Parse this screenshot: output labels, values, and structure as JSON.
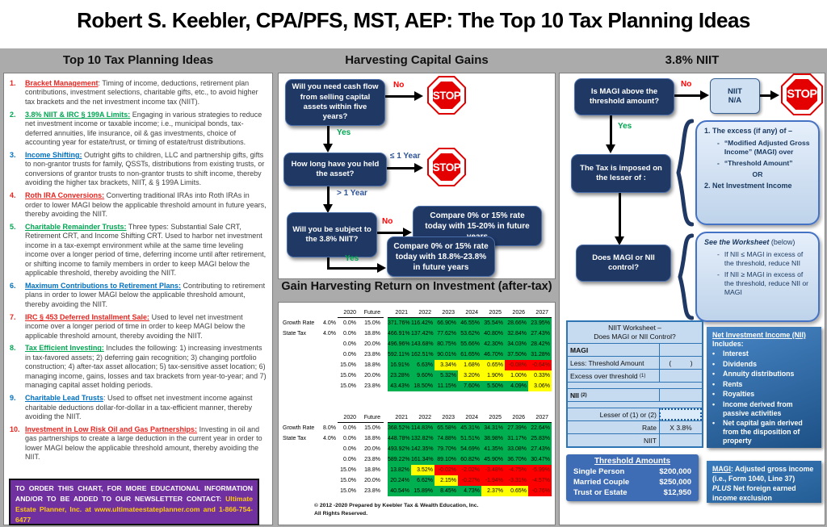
{
  "title": "Robert S. Keebler, CPA/PFS, MST, AEP: The Top 10 Tax Planning Ideas",
  "headers": {
    "left": "Top 10 Tax Planning Ideas",
    "middle": "Harvesting Capital Gains",
    "right": "3.8% NIIT"
  },
  "labels": {
    "no": "No",
    "yes": "Yes",
    "stop": "STOP"
  },
  "ideas": [
    {
      "num": "1.",
      "color": "red",
      "heading": "Bracket Management",
      "body": ": Timing of income, deductions, retirement plan contributions, investment selections, charitable gifts, etc., to avoid higher tax brackets and the net investment income tax (NIIT)."
    },
    {
      "num": "2.",
      "color": "green",
      "heading": "3.8% NIIT & IRC § 199A Limits:",
      "body": " Engaging in various strategies to reduce net investment income or taxable income; i.e., municipal bonds, tax-deferred annuities, life insurance, oil & gas investments, choice of accounting year for estate/trust, or timing of estate/trust distributions."
    },
    {
      "num": "3.",
      "color": "blue",
      "heading": "Income Shifting:",
      "body": " Outright gifts to children, LLC and partnership gifts, gifts to non-grantor trusts for family, QSSTs, distributions from existing trusts, or conversions of grantor trusts to non-grantor trusts to shift income, thereby avoiding the higher tax brackets, NIIT, & § 199A Limits."
    },
    {
      "num": "4.",
      "color": "red",
      "heading": "Roth IRA Conversions:",
      "body": " Converting traditional IRAs into Roth IRAs in order to lower MAGI below the applicable threshold amount in future years, thereby avoiding the NIIT."
    },
    {
      "num": "5.",
      "color": "green",
      "heading": "Charitable Remainder Trusts:",
      "body": " Three types: Substantial Sale CRT, Retirement CRT, and Income Shifting CRT. Used to harbor net investment income in a tax-exempt environment while at the same time leveling income over a longer period of time, deferring income until after retirement, or shifting income to family members in order to keep MAGI below the applicable threshold, thereby avoiding  the NIIT."
    },
    {
      "num": "6.",
      "color": "blue",
      "heading": "Maximum Contributions to Retirement Plans:",
      "body": " Contributing to retirement plans in order to lower MAGI below the applicable threshold amount, thereby avoiding the NIIT."
    },
    {
      "num": "7.",
      "color": "red",
      "heading": "IRC § 453 Deferred Installment Sale:",
      "body": " Used to level net investment income over a longer period of time in order to keep MAGI below the applicable threshold amount, thereby avoiding the NIIT."
    },
    {
      "num": "8.",
      "color": "green",
      "heading": "Tax Efficient Investing:",
      "body": " Includes the following: 1) increasing investments in tax-favored assets; 2) deferring gain recognition; 3) changing portfolio construction; 4) after-tax asset allocation; 5) tax-sensitive asset location; 6) managing income, gains, losses and tax brackets from year-to-year; and 7) managing capital asset holding periods."
    },
    {
      "num": "9.",
      "color": "blue",
      "heading": "Charitable Lead Trusts",
      "body": ": Used to offset net investment income against charitable deductions dollar-for-dollar in a tax-efficient manner, thereby avoiding the NIIT."
    },
    {
      "num": "10.",
      "color": "red",
      "heading": "Investment in Low Risk Oil and Gas Partnerships:",
      "body": " Investing in oil and gas partnerships to create a large deduction in the current year in order to lower MAGI below the applicable threshold amount, thereby avoiding the NIIT."
    }
  ],
  "contact": {
    "white": "TO ORDER THIS CHART, FOR MORE EDUCATIONAL INFORMATION AND/OR TO BE ADDED TO OUR NEWSLETTER CONTACT: ",
    "gold": "Ultimate Estate Planner, Inc. at www.ultimateestateplanner.com and 1-866-754-6477"
  },
  "flow": {
    "q1": "Will you need cash flow from selling capital assets within five years?",
    "q2": "How long have you held the asset?",
    "q2_le": "≤ 1 Year",
    "q2_gt": "> 1 Year",
    "q3": "Will you be subject to the 3.8% NIIT?",
    "r1": "Compare 0% or 15% rate today with 15-20% in future years",
    "r2": "Compare 0% or 15% rate today with 18.8%-23.8% in future years"
  },
  "gain_table": {
    "title": "Gain Harvesting Return on Investment (after-tax)",
    "col_headers": [
      "2020",
      "Future",
      "2021",
      "2022",
      "2023",
      "2024",
      "2025",
      "2026",
      "2027"
    ],
    "tables": [
      {
        "label1": "Growth Rate",
        "rate1": "4.0%",
        "label2": "State Tax",
        "rate2": "4.0%",
        "rows": [
          {
            "base": [
              "0.0%",
              "15.0%"
            ],
            "values": [
              "371.76%",
              "116.42%",
              "66.90%",
              "46.55%",
              "35.54%",
              "28.66%",
              "23.95%"
            ],
            "colors": [
              "g",
              "g",
              "g",
              "g",
              "g",
              "g",
              "g"
            ]
          },
          {
            "base": [
              "0.0%",
              "18.8%"
            ],
            "values": [
              "466.91%",
              "137.42%",
              "77.62%",
              "53.62%",
              "40.80%",
              "32.84%",
              "27.43%"
            ],
            "colors": [
              "g",
              "g",
              "g",
              "g",
              "g",
              "g",
              "g"
            ]
          },
          {
            "base": [
              "0.0%",
              "20.0%"
            ],
            "values": [
              "496.96%",
              "143.68%",
              "80.75%",
              "55.66%",
              "42.30%",
              "34.03%",
              "28.42%"
            ],
            "colors": [
              "g",
              "g",
              "g",
              "g",
              "g",
              "g",
              "g"
            ]
          },
          {
            "base": [
              "0.0%",
              "23.8%"
            ],
            "values": [
              "592.11%",
              "162.51%",
              "90.01%",
              "61.65%",
              "46.70%",
              "37.50%",
              "31.28%"
            ],
            "colors": [
              "g",
              "g",
              "g",
              "g",
              "g",
              "g",
              "g"
            ]
          },
          {
            "base": [
              "15.0%",
              "18.8%"
            ],
            "values": [
              "16.91%",
              "6.63%",
              "3.34%",
              "1.68%",
              "0.65%",
              "-0.08%",
              "-0.64%"
            ],
            "colors": [
              "g",
              "g",
              "y",
              "y",
              "y",
              "r",
              "r"
            ]
          },
          {
            "base": [
              "15.0%",
              "20.0%"
            ],
            "values": [
              "23.28%",
              "9.60%",
              "5.32%",
              "3.20%",
              "1.90%",
              "1.00%",
              "0.33%"
            ],
            "colors": [
              "g",
              "g",
              "g",
              "y",
              "y",
              "y",
              "y"
            ]
          },
          {
            "base": [
              "15.0%",
              "23.8%"
            ],
            "values": [
              "43.43%",
              "18.50%",
              "11.15%",
              "7.60%",
              "5.50%",
              "4.09%",
              "3.06%"
            ],
            "colors": [
              "g",
              "g",
              "g",
              "g",
              "g",
              "g",
              "y"
            ]
          }
        ]
      },
      {
        "label1": "Growth Rate",
        "rate1": "8.0%",
        "label2": "State Tax",
        "rate2": "4.0%",
        "rows": [
          {
            "base": [
              "0.0%",
              "15.0%"
            ],
            "values": [
              "368.52%",
              "114.83%",
              "65.58%",
              "45.31%",
              "34.31%",
              "27.39%",
              "22.64%"
            ],
            "colors": [
              "g",
              "g",
              "g",
              "g",
              "g",
              "g",
              "g"
            ]
          },
          {
            "base": [
              "0.0%",
              "18.8%"
            ],
            "values": [
              "448.78%",
              "132.82%",
              "74.88%",
              "51.51%",
              "38.98%",
              "31.17%",
              "25.83%"
            ],
            "colors": [
              "g",
              "g",
              "g",
              "g",
              "g",
              "g",
              "g"
            ]
          },
          {
            "base": [
              "0.0%",
              "20.0%"
            ],
            "values": [
              "493.92%",
              "142.35%",
              "79.70%",
              "54.69%",
              "41.35%",
              "33.08%",
              "27.43%"
            ],
            "colors": [
              "g",
              "g",
              "g",
              "g",
              "g",
              "g",
              "g"
            ]
          },
          {
            "base": [
              "0.0%",
              "23.8%"
            ],
            "values": [
              "589.22%",
              "161.34%",
              "89.10%",
              "60.82%",
              "45.90%",
              "36.70%",
              "30.47%"
            ],
            "colors": [
              "g",
              "g",
              "g",
              "g",
              "g",
              "g",
              "g"
            ]
          },
          {
            "base": [
              "15.0%",
              "18.8%"
            ],
            "values": [
              "13.82%",
              "3.52%",
              "-0.02%",
              "-2.02%",
              "-3.48%",
              "-4.75%",
              "-5.99%"
            ],
            "colors": [
              "g",
              "y",
              "r",
              "r",
              "r",
              "r",
              "r"
            ]
          },
          {
            "base": [
              "15.0%",
              "20.0%"
            ],
            "values": [
              "20.24%",
              "6.62%",
              "2.15%",
              "-0.27%",
              "-1.94%",
              "-3.31%",
              "-4.57%"
            ],
            "colors": [
              "g",
              "g",
              "y",
              "r",
              "r",
              "r",
              "r"
            ]
          },
          {
            "base": [
              "15.0%",
              "23.8%"
            ],
            "values": [
              "40.54%",
              "15.89%",
              "8.45%",
              "4.73%",
              "2.37%",
              "0.65%",
              "-0.76%"
            ],
            "colors": [
              "g",
              "g",
              "g",
              "g",
              "y",
              "y",
              "r"
            ]
          }
        ]
      }
    ],
    "copyright1": "© 2012 -2020 Prepared by Keebler Tax & Wealth Education, Inc.",
    "copyright2": "All Rights Reserved."
  },
  "niit": {
    "q1": "Is MAGI above the threshold amount?",
    "na": "NIIT\nN/A",
    "tax_box": "The Tax is imposed on the lesser of :",
    "control_box": "Does MAGI or NII control?",
    "excess_box": {
      "heading": "1. The excess (if any) of –",
      "bullets": [
        "“Modified Adjusted Gross Income” (MAGI) over",
        "“Threshold Amount”"
      ],
      "or": "OR",
      "heading2": "2. Net Investment Income"
    },
    "worksheet_note": {
      "title_italic": "See the Worksheet",
      "title_rest": " (below)",
      "bullets": [
        "If NII ≤ MAGI in excess of the threshold, reduce NII",
        "If NII ≥ MAGI in excess of the threshold, reduce NII or MAGI"
      ]
    },
    "worksheet": {
      "title1": "NIIT Worksheet –",
      "title2": "Does MAGI or NII Control?",
      "rows": [
        {
          "label": "MAGI",
          "bold": true,
          "value": ""
        },
        {
          "label": "Less: Threshold Amount",
          "value": "(          )"
        },
        {
          "label": "Excess over threshold",
          "sup": "(1)",
          "value": ""
        },
        {
          "spacer": true
        },
        {
          "label": "NII",
          "sup": "(2)",
          "bold": true,
          "value": ""
        },
        {
          "spacer": true
        },
        {
          "label": "Lesser of (1) or (2)",
          "right": true,
          "dashed": true,
          "value": ""
        },
        {
          "label": "Rate",
          "right": true,
          "value": "X 3.8%"
        },
        {
          "label": "NIIT",
          "right": true,
          "value": ""
        }
      ]
    },
    "thresholds": {
      "title": "Threshold Amounts",
      "rows": [
        {
          "name": "Single Person",
          "value": "$200,000"
        },
        {
          "name": "Married Couple",
          "value": "$250,000"
        },
        {
          "name": "Trust or Estate",
          "value": "$12,950"
        }
      ]
    },
    "nii_box": {
      "title": "Net Investment Income (NII)",
      "includes": "Includes:",
      "bullets": [
        "Interest",
        "Dividends",
        "Annuity distributions",
        "Rents",
        "Royalties",
        "Income derived from passive activities",
        "Net capital gain derived from the disposition of property"
      ]
    },
    "magi_box": {
      "label": "MAGI",
      "text1": ": Adjusted gross income (i.e., Form 1040, Line 37)  ",
      "plus": "PLUS",
      "text2": " Net foreign earned income exclusion"
    }
  }
}
